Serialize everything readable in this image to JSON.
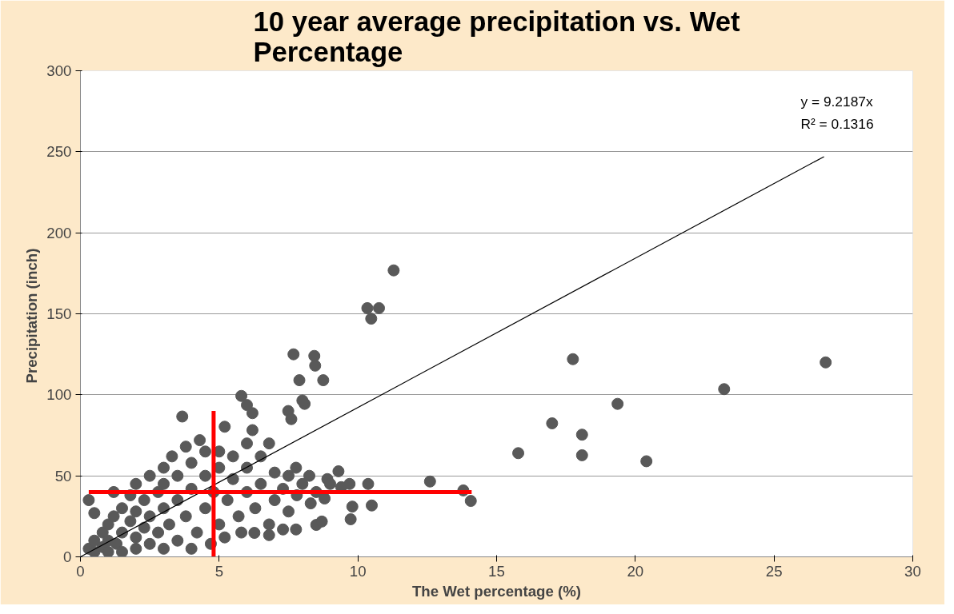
{
  "chart_data": {
    "type": "scatter",
    "title": "10 year average precipitation vs. Wet Percentage",
    "xlabel": "The Wet percentage (%)",
    "ylabel": "Precipitation  (inch)",
    "xlim": [
      0,
      30
    ],
    "xticks": [
      0,
      5,
      10,
      15,
      20,
      25,
      30
    ],
    "ylim": [
      0,
      300
    ],
    "yticks": [
      0,
      50,
      100,
      150,
      200,
      250,
      300
    ],
    "grid": "y",
    "annotations": [
      "y = 9.2187x",
      "R² = 0.1316"
    ],
    "series": [
      {
        "color": "#595959",
        "marker": "circle",
        "x": [
          26.86,
          23.2,
          19.36,
          20.4,
          17.75,
          17.0,
          18.08,
          18.08,
          15.78,
          12.6,
          13.8,
          14.07,
          11.29,
          10.34,
          10.76,
          10.48,
          7.68,
          8.43,
          8.46,
          7.89,
          8.75,
          8.08,
          7.49,
          7.6,
          8.0,
          5.8,
          6.0,
          6.2,
          3.67,
          5.2,
          6.2,
          6.27,
          6.8,
          7.3,
          7.77,
          8.5,
          8.7,
          9.74,
          9.7,
          10.37,
          10.5,
          9.8,
          9.3,
          7.77,
          8.25,
          9.4,
          8.9,
          0.3,
          0.5,
          0.5,
          0.8,
          0.8,
          1,
          1,
          1,
          1.2,
          1.3,
          1.5,
          1.5,
          1.5,
          1.8,
          1.8,
          2,
          2,
          2,
          2,
          2.3,
          2.3,
          2.5,
          2.5,
          2.5,
          2.8,
          2.8,
          3,
          3,
          3,
          3,
          3.2,
          3.3,
          3.5,
          3.5,
          3.5,
          3.8,
          3.8,
          4,
          4,
          4,
          4.2,
          4.3,
          4.5,
          4.5,
          4.5,
          4.7,
          4.8,
          5,
          5,
          5,
          5.2,
          5.3,
          5.5,
          5.5,
          5.7,
          5.8,
          6,
          6,
          6,
          6.3,
          6.5,
          6.5,
          6.8,
          6.8,
          7,
          7,
          7.3,
          7.5,
          7.5,
          7.8,
          8,
          8.3,
          8.5,
          8.8,
          9,
          0.3,
          0.5,
          1.2
        ],
        "values": [
          120,
          103.5,
          94.4,
          59,
          122,
          82.4,
          75.4,
          62.7,
          64,
          46.5,
          41,
          34.5,
          176.8,
          153.5,
          153.5,
          147,
          125,
          124,
          118,
          109,
          109,
          94.4,
          90,
          85,
          96.5,
          99.3,
          93.7,
          88.7,
          86.6,
          80.3,
          78.2,
          14.8,
          13.4,
          16.9,
          16.9,
          19.7,
          21.8,
          23.2,
          45,
          45,
          31.7,
          31,
          52.8,
          55,
          50,
          43,
          48,
          5,
          3,
          10,
          6,
          15,
          3,
          10,
          20,
          25,
          8,
          15,
          30,
          3,
          22,
          38,
          5,
          12,
          28,
          45,
          18,
          35,
          8,
          25,
          50,
          40,
          15,
          5,
          30,
          55,
          45,
          20,
          62,
          10,
          35,
          50,
          25,
          68,
          5,
          42,
          58,
          15,
          72,
          30,
          50,
          65,
          8,
          40,
          20,
          55,
          65,
          12,
          35,
          48,
          62,
          25,
          15,
          40,
          55,
          70,
          30,
          45,
          62,
          20,
          70,
          35,
          52,
          42,
          28,
          50,
          38,
          45,
          33,
          40,
          36,
          45,
          35,
          27,
          40
        ]
      },
      {
        "type": "line",
        "color": "#000000",
        "x": [
          0,
          26.8
        ],
        "values": [
          0,
          247
        ]
      },
      {
        "type": "line",
        "color": "#ff0000",
        "x": [
          0.3,
          14.1
        ],
        "values": [
          40,
          40
        ]
      },
      {
        "type": "line",
        "color": "#ff0000",
        "x": [
          4.8,
          4.8
        ],
        "values": [
          0,
          90
        ]
      }
    ]
  }
}
